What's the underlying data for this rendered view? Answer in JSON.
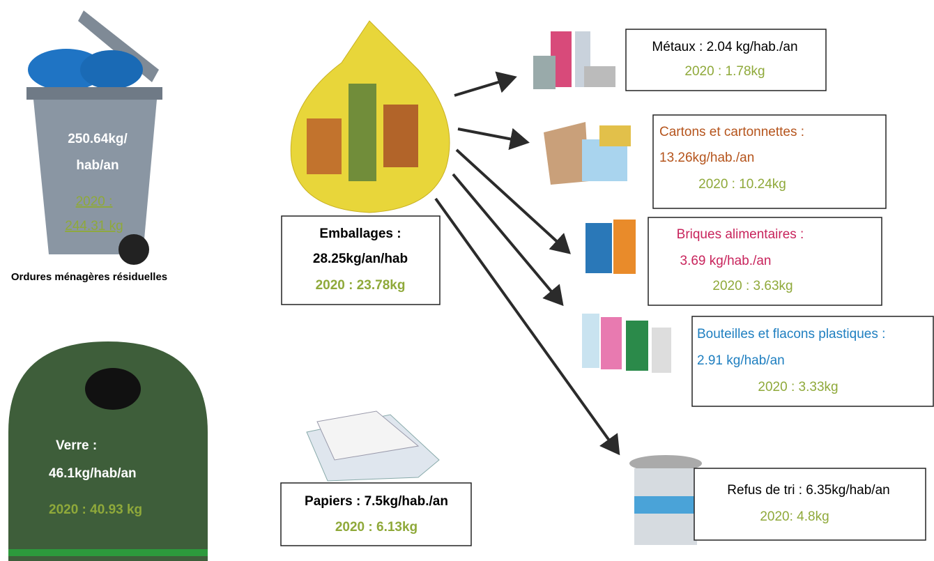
{
  "ordures": {
    "line1": "250.64kg/",
    "line2": "hab/an",
    "year1": "2020 :",
    "year2": "244.31 kg",
    "caption": "Ordures ménagères résiduelles"
  },
  "verre": {
    "label": "Verre :",
    "value": "46.1kg/hab/an",
    "year": "2020 : 40.93 kg"
  },
  "emballages": {
    "label": "Emballages :",
    "value": "28.25kg/an/hab",
    "year": "2020 : 23.78kg"
  },
  "papiers": {
    "value": "Papiers : 7.5kg/hab./an",
    "year": "2020 : 6.13kg"
  },
  "flows": [
    {
      "value": "Métaux : 2.04 kg/hab./an",
      "year": "2020 : 1.78kg"
    },
    {
      "label": "Cartons et cartonnettes :",
      "value": "13.26kg/hab./an",
      "year": "2020 : 10.24kg"
    },
    {
      "label": "Briques alimentaires :",
      "value": "3.69 kg/hab./an",
      "year": "2020 : 3.63kg"
    },
    {
      "label": "Bouteilles et flacons plastiques :",
      "value": "2.91 kg/hab/an",
      "year": "2020 : 3.33kg"
    },
    {
      "value": "Refus de tri : 6.35kg/hab/an",
      "year": "2020: 4.8kg"
    }
  ]
}
